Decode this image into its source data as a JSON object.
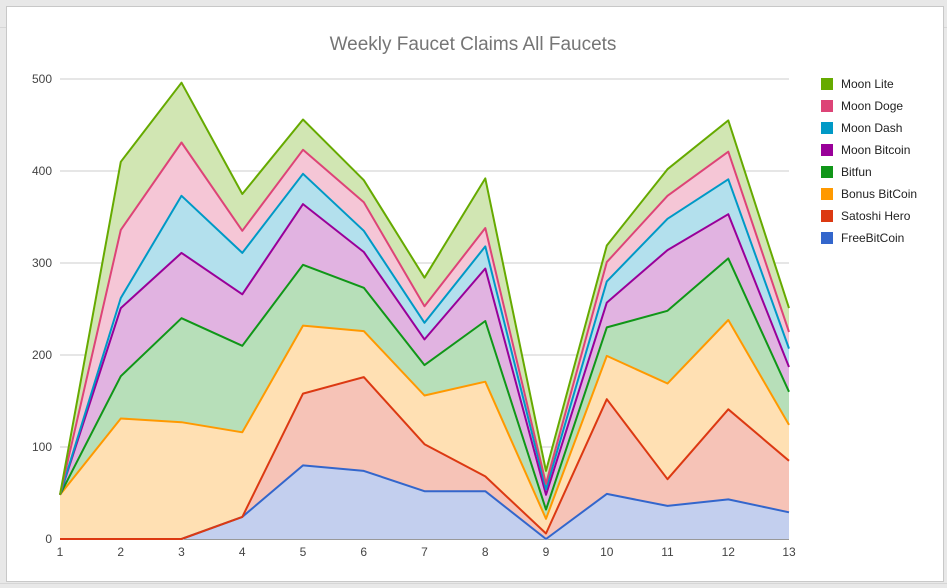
{
  "chart_data": {
    "type": "area",
    "stacked": true,
    "title": "Weekly Faucet Claims All Faucets",
    "xlabel": "",
    "ylabel": "",
    "x": [
      1,
      2,
      3,
      4,
      5,
      6,
      7,
      8,
      9,
      10,
      11,
      12,
      13
    ],
    "ylim": [
      0,
      500
    ],
    "yticks": [
      0,
      100,
      200,
      300,
      400,
      500
    ],
    "grid": true,
    "legend_position": "right",
    "series": [
      {
        "name": "FreeBitCoin",
        "color": "#3366cc",
        "fill": "#c3cfee",
        "values": [
          0,
          0,
          0,
          24,
          80,
          74,
          52,
          52,
          0,
          49,
          36,
          43,
          29
        ]
      },
      {
        "name": "Satoshi Hero",
        "color": "#dc3912",
        "fill": "#f6c3b7",
        "values": [
          0,
          0,
          0,
          0,
          78,
          102,
          51,
          16,
          6,
          103,
          29,
          98,
          56
        ]
      },
      {
        "name": "Bonus BitCoin",
        "color": "#ff9900",
        "fill": "#ffe0b3",
        "values": [
          48,
          131,
          127,
          92,
          74,
          50,
          53,
          103,
          16,
          47,
          104,
          97,
          39
        ]
      },
      {
        "name": "Bitfun",
        "color": "#109618",
        "fill": "#b7dfb9",
        "values": [
          0,
          46,
          113,
          94,
          66,
          47,
          33,
          66,
          10,
          31,
          79,
          67,
          36
        ]
      },
      {
        "name": "Moon Bitcoin",
        "color": "#990099",
        "fill": "#e1b3e1",
        "values": [
          0,
          74,
          71,
          56,
          66,
          39,
          28,
          57,
          16,
          27,
          66,
          48,
          27
        ]
      },
      {
        "name": "Moon Dash",
        "color": "#0099c6",
        "fill": "#b3e0ed",
        "values": [
          0,
          11,
          62,
          45,
          33,
          23,
          18,
          24,
          6,
          23,
          34,
          38,
          20
        ]
      },
      {
        "name": "Moon Doge",
        "color": "#dd4477",
        "fill": "#f5c6d6",
        "values": [
          0,
          74,
          58,
          24,
          26,
          31,
          18,
          20,
          6,
          21,
          25,
          30,
          18
        ]
      },
      {
        "name": "Moon Lite",
        "color": "#66aa00",
        "fill": "#d1e6b3",
        "values": [
          0,
          74,
          65,
          40,
          33,
          24,
          31,
          54,
          14,
          18,
          29,
          34,
          26
        ]
      }
    ]
  }
}
